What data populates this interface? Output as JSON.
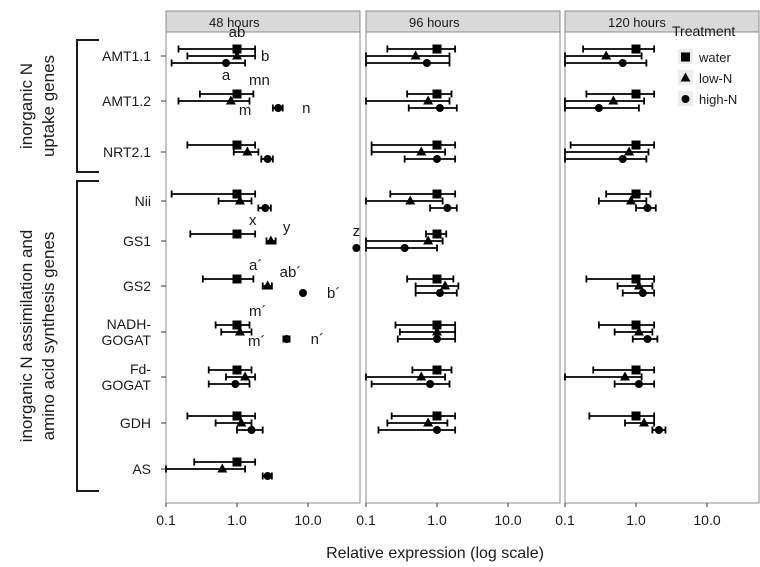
{
  "chart_data": {
    "type": "scatter",
    "xlabel": "Relative expression (log scale)",
    "x_scale": "log",
    "xlim": [
      0.1,
      50
    ],
    "x_ticks": [
      "0.1",
      "1.0",
      "10.0"
    ],
    "panels": [
      "48 hours",
      "96 hours",
      "120 hours"
    ],
    "genes": [
      "AMT1.1",
      "AMT1.2",
      "NRT2.1",
      "Nii",
      "GS1",
      "GS2",
      "NADH-\nGOGAT",
      "Fd-\nGOGAT",
      "GDH",
      "AS"
    ],
    "groups": [
      {
        "label_lines": [
          "inorganic N",
          "uptake genes"
        ],
        "genes": [
          "AMT1.1",
          "AMT1.2",
          "NRT2.1"
        ]
      },
      {
        "label_lines": [
          "inorganic N assimilation and",
          "amino acid synthesis genes"
        ],
        "genes": [
          "Nii",
          "GS1",
          "GS2",
          "NADH-\nGOGAT",
          "Fd-\nGOGAT",
          "GDH",
          "AS"
        ]
      }
    ],
    "legend": {
      "title": "Treatment",
      "placement": "top-right",
      "entries": [
        {
          "name": "water",
          "shape": "square"
        },
        {
          "name": "low-N",
          "shape": "triangle"
        },
        {
          "name": "high-N",
          "shape": "circle"
        }
      ]
    },
    "series": [
      {
        "name": "water",
        "shape": "square",
        "points": [
          {
            "panel": 0,
            "gene": 0,
            "value": 1.0,
            "low": 0.15,
            "high": 1.8
          },
          {
            "panel": 0,
            "gene": 1,
            "value": 1.0,
            "low": 0.3,
            "high": 1.7
          },
          {
            "panel": 0,
            "gene": 2,
            "value": 1.0,
            "low": 0.2,
            "high": 1.8
          },
          {
            "panel": 0,
            "gene": 3,
            "value": 1.0,
            "low": 0.12,
            "high": 1.8
          },
          {
            "panel": 0,
            "gene": 4,
            "value": 1.0,
            "low": 0.22,
            "high": 1.8
          },
          {
            "panel": 0,
            "gene": 5,
            "value": 1.0,
            "low": 0.33,
            "high": 1.7
          },
          {
            "panel": 0,
            "gene": 6,
            "value": 1.0,
            "low": 0.5,
            "high": 1.5
          },
          {
            "panel": 0,
            "gene": 7,
            "value": 1.0,
            "low": 0.4,
            "high": 1.6
          },
          {
            "panel": 0,
            "gene": 8,
            "value": 1.0,
            "low": 0.2,
            "high": 1.8
          },
          {
            "panel": 0,
            "gene": 9,
            "value": 1.0,
            "low": 0.25,
            "high": 1.8
          },
          {
            "panel": 1,
            "gene": 0,
            "value": 1.0,
            "low": 0.2,
            "high": 1.8
          },
          {
            "panel": 1,
            "gene": 1,
            "value": 1.0,
            "low": 0.38,
            "high": 1.6
          },
          {
            "panel": 1,
            "gene": 2,
            "value": 1.0,
            "low": 0.12,
            "high": 1.8
          },
          {
            "panel": 1,
            "gene": 3,
            "value": 1.0,
            "low": 0.22,
            "high": 1.8
          },
          {
            "panel": 1,
            "gene": 4,
            "value": 1.0,
            "low": 0.7,
            "high": 1.35
          },
          {
            "panel": 1,
            "gene": 5,
            "value": 1.0,
            "low": 0.38,
            "high": 1.7
          },
          {
            "panel": 1,
            "gene": 6,
            "value": 1.0,
            "low": 0.26,
            "high": 1.8
          },
          {
            "panel": 1,
            "gene": 7,
            "value": 1.0,
            "low": 0.45,
            "high": 1.6
          },
          {
            "panel": 1,
            "gene": 8,
            "value": 1.0,
            "low": 0.23,
            "high": 1.8
          },
          {
            "panel": 2,
            "gene": 0,
            "value": 1.0,
            "low": 0.18,
            "high": 1.8
          },
          {
            "panel": 2,
            "gene": 1,
            "value": 1.0,
            "low": 0.2,
            "high": 1.8
          },
          {
            "panel": 2,
            "gene": 2,
            "value": 1.0,
            "low": 0.12,
            "high": 1.8
          },
          {
            "panel": 2,
            "gene": 3,
            "value": 1.0,
            "low": 0.38,
            "high": 1.6
          },
          {
            "panel": 2,
            "gene": 5,
            "value": 1.0,
            "low": 0.2,
            "high": 1.8
          },
          {
            "panel": 2,
            "gene": 6,
            "value": 1.0,
            "low": 0.3,
            "high": 1.8
          },
          {
            "panel": 2,
            "gene": 7,
            "value": 1.0,
            "low": 0.25,
            "high": 1.8
          },
          {
            "panel": 2,
            "gene": 8,
            "value": 1.0,
            "low": 0.22,
            "high": 1.8
          }
        ]
      },
      {
        "name": "low-N",
        "shape": "triangle",
        "points": [
          {
            "panel": 0,
            "gene": 0,
            "value": 1.0,
            "low": 0.2,
            "high": 1.8
          },
          {
            "panel": 0,
            "gene": 1,
            "value": 0.82,
            "low": 0.15,
            "high": 1.5
          },
          {
            "panel": 0,
            "gene": 2,
            "value": 1.4,
            "low": 0.9,
            "high": 2.0
          },
          {
            "panel": 0,
            "gene": 3,
            "value": 1.1,
            "low": 0.55,
            "high": 1.6
          },
          {
            "panel": 0,
            "gene": 4,
            "value": 3.0,
            "low": 2.6,
            "high": 3.5
          },
          {
            "panel": 0,
            "gene": 5,
            "value": 2.7,
            "low": 2.3,
            "high": 3.1
          },
          {
            "panel": 0,
            "gene": 6,
            "value": 1.1,
            "low": 0.6,
            "high": 1.6
          },
          {
            "panel": 0,
            "gene": 7,
            "value": 1.3,
            "low": 0.7,
            "high": 1.8
          },
          {
            "panel": 0,
            "gene": 8,
            "value": 1.15,
            "low": 0.5,
            "high": 1.6
          },
          {
            "panel": 0,
            "gene": 9,
            "value": 0.62,
            "low": 0.1,
            "high": 1.3
          },
          {
            "panel": 1,
            "gene": 0,
            "value": 0.5,
            "low": 0.1,
            "high": 1.5
          },
          {
            "panel": 1,
            "gene": 1,
            "value": 0.75,
            "low": 0.1,
            "high": 1.5
          },
          {
            "panel": 1,
            "gene": 2,
            "value": 0.6,
            "low": 0.12,
            "high": 1.3
          },
          {
            "panel": 1,
            "gene": 3,
            "value": 0.42,
            "low": 0.1,
            "high": 1.2
          },
          {
            "panel": 1,
            "gene": 4,
            "value": 0.75,
            "low": 0.1,
            "high": 1.2
          },
          {
            "panel": 1,
            "gene": 5,
            "value": 1.3,
            "low": 0.5,
            "high": 2.0
          },
          {
            "panel": 1,
            "gene": 6,
            "value": 1.0,
            "low": 0.3,
            "high": 1.8
          },
          {
            "panel": 1,
            "gene": 7,
            "value": 0.6,
            "low": 0.1,
            "high": 1.3
          },
          {
            "panel": 1,
            "gene": 8,
            "value": 0.75,
            "low": 0.2,
            "high": 1.4
          },
          {
            "panel": 2,
            "gene": 0,
            "value": 0.38,
            "low": 0.1,
            "high": 1.2
          },
          {
            "panel": 2,
            "gene": 1,
            "value": 0.48,
            "low": 0.1,
            "high": 1.3
          },
          {
            "panel": 2,
            "gene": 2,
            "value": 0.8,
            "low": 0.1,
            "high": 1.5
          },
          {
            "panel": 2,
            "gene": 3,
            "value": 0.85,
            "low": 0.3,
            "high": 1.4
          },
          {
            "panel": 2,
            "gene": 5,
            "value": 1.1,
            "low": 0.55,
            "high": 1.7
          },
          {
            "panel": 2,
            "gene": 6,
            "value": 1.1,
            "low": 0.5,
            "high": 1.7
          },
          {
            "panel": 2,
            "gene": 7,
            "value": 0.7,
            "low": 0.1,
            "high": 1.2
          },
          {
            "panel": 2,
            "gene": 8,
            "value": 1.3,
            "low": 0.7,
            "high": 1.8
          }
        ]
      },
      {
        "name": "high-N",
        "shape": "circle",
        "points": [
          {
            "panel": 0,
            "gene": 0,
            "value": 0.7,
            "low": 0.12,
            "high": 1.3
          },
          {
            "panel": 0,
            "gene": 1,
            "value": 3.8,
            "low": 3.2,
            "high": 4.4
          },
          {
            "panel": 0,
            "gene": 2,
            "value": 2.7,
            "low": 2.2,
            "high": 3.2
          },
          {
            "panel": 0,
            "gene": 3,
            "value": 2.5,
            "low": 2.0,
            "high": 3.0
          },
          {
            "panel": 0,
            "gene": 4,
            "value": 48,
            "low": 48,
            "high": 48
          },
          {
            "panel": 0,
            "gene": 5,
            "value": 8.5,
            "low": 8.5,
            "high": 8.5
          },
          {
            "panel": 0,
            "gene": 6,
            "value": 5.0,
            "low": 4.5,
            "high": 5.5
          },
          {
            "panel": 0,
            "gene": 7,
            "value": 0.95,
            "low": 0.4,
            "high": 1.5
          },
          {
            "panel": 0,
            "gene": 8,
            "value": 1.6,
            "low": 1.0,
            "high": 2.3
          },
          {
            "panel": 0,
            "gene": 9,
            "value": 2.7,
            "low": 2.3,
            "high": 3.1
          },
          {
            "panel": 1,
            "gene": 0,
            "value": 0.72,
            "low": 0.1,
            "high": 1.5
          },
          {
            "panel": 1,
            "gene": 1,
            "value": 1.1,
            "low": 0.4,
            "high": 1.9
          },
          {
            "panel": 1,
            "gene": 2,
            "value": 1.0,
            "low": 0.35,
            "high": 1.8
          },
          {
            "panel": 1,
            "gene": 3,
            "value": 1.4,
            "low": 0.8,
            "high": 1.9
          },
          {
            "panel": 1,
            "gene": 4,
            "value": 0.35,
            "low": 0.1,
            "high": 1.0
          },
          {
            "panel": 1,
            "gene": 5,
            "value": 1.1,
            "low": 0.5,
            "high": 1.9
          },
          {
            "panel": 1,
            "gene": 6,
            "value": 1.0,
            "low": 0.28,
            "high": 1.8
          },
          {
            "panel": 1,
            "gene": 7,
            "value": 0.8,
            "low": 0.12,
            "high": 1.5
          },
          {
            "panel": 1,
            "gene": 8,
            "value": 1.0,
            "low": 0.15,
            "high": 1.8
          },
          {
            "panel": 2,
            "gene": 0,
            "value": 0.65,
            "low": 0.1,
            "high": 1.4
          },
          {
            "panel": 2,
            "gene": 1,
            "value": 0.3,
            "low": 0.1,
            "high": 1.1
          },
          {
            "panel": 2,
            "gene": 2,
            "value": 0.65,
            "low": 0.1,
            "high": 1.4
          },
          {
            "panel": 2,
            "gene": 3,
            "value": 1.45,
            "low": 1.0,
            "high": 1.9
          },
          {
            "panel": 2,
            "gene": 5,
            "value": 1.25,
            "low": 0.65,
            "high": 1.8
          },
          {
            "panel": 2,
            "gene": 6,
            "value": 1.45,
            "low": 0.9,
            "high": 2.0
          },
          {
            "panel": 2,
            "gene": 7,
            "value": 1.1,
            "low": 0.5,
            "high": 1.8
          },
          {
            "panel": 2,
            "gene": 8,
            "value": 2.1,
            "low": 1.7,
            "high": 2.6
          }
        ]
      }
    ],
    "annotations": [
      {
        "text": "ab",
        "panel": 0,
        "gene": 0,
        "series": "water",
        "dir": "above"
      },
      {
        "text": "b",
        "panel": 0,
        "gene": 0,
        "series": "low-N",
        "dir": "right"
      },
      {
        "text": "a",
        "panel": 0,
        "gene": 0,
        "series": "high-N",
        "dir": "below"
      },
      {
        "text": "mn",
        "panel": 0,
        "gene": 1,
        "series": "water",
        "dir": "above-right"
      },
      {
        "text": "m",
        "panel": 0,
        "gene": 1,
        "series": "low-N",
        "dir": "below-right"
      },
      {
        "text": "n",
        "panel": 0,
        "gene": 1,
        "series": "high-N",
        "dir": "right"
      },
      {
        "text": "x",
        "panel": 0,
        "gene": 4,
        "series": "water",
        "dir": "above-right"
      },
      {
        "text": "y",
        "panel": 0,
        "gene": 4,
        "series": "low-N",
        "dir": "above-right"
      },
      {
        "text": "z",
        "panel": 0,
        "gene": 4,
        "series": "high-N",
        "dir": "above"
      },
      {
        "text": "a´",
        "panel": 0,
        "gene": 5,
        "series": "water",
        "dir": "above-right"
      },
      {
        "text": "ab´",
        "panel": 0,
        "gene": 5,
        "series": "low-N",
        "dir": "above-right"
      },
      {
        "text": "b´",
        "panel": 0,
        "gene": 5,
        "series": "high-N",
        "dir": "right"
      },
      {
        "text": "m´",
        "panel": 0,
        "gene": 6,
        "series": "water",
        "dir": "above-right"
      },
      {
        "text": "m´",
        "panel": 0,
        "gene": 6,
        "series": "low-N",
        "dir": "below-right"
      },
      {
        "text": "n´",
        "panel": 0,
        "gene": 6,
        "series": "high-N",
        "dir": "right"
      }
    ]
  }
}
